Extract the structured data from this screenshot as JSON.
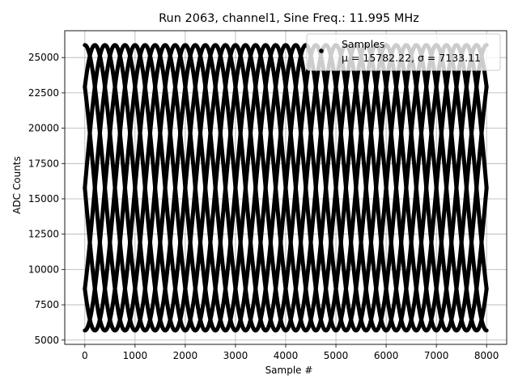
{
  "chart_data": {
    "type": "scatter",
    "title": "Run 2063, channel1, Sine Freq.: 11.995 MHz",
    "xlabel": "Sample #",
    "ylabel": "ADC Counts",
    "xlim": [
      -400,
      8400
    ],
    "ylim": [
      4700,
      26900
    ],
    "xticks": [
      0,
      1000,
      2000,
      3000,
      4000,
      5000,
      6000,
      7000,
      8000
    ],
    "yticks": [
      5000,
      7500,
      10000,
      12500,
      15000,
      17500,
      20000,
      22500,
      25000
    ],
    "grid": true,
    "legend": {
      "placement": "top-right",
      "label": "Samples",
      "stats": "μ = 15782.22, σ = 7133.11"
    },
    "series": [
      {
        "name": "Samples",
        "color": "#000000",
        "marker": "dot",
        "model": "sinusoid sampled at 8 phases per period",
        "mean": 15782.22,
        "amplitude": 10100,
        "phase_traces": 8,
        "envelope_period_samples": 1600,
        "x_range": [
          0,
          8000
        ]
      }
    ]
  }
}
